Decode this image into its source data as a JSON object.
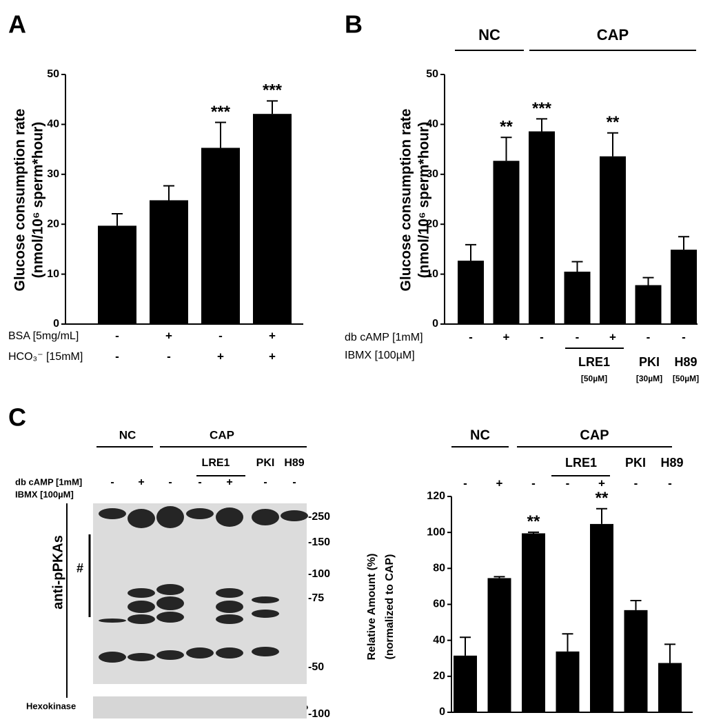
{
  "panel_labels": [
    "A",
    "B",
    "C"
  ],
  "chart_data": [
    {
      "type": "bar",
      "ylabel": [
        "Glucose consumption rate",
        "(nmol/10⁶ sperm*hour)"
      ],
      "values": [
        19.7,
        24.8,
        35.3,
        42.1
      ],
      "errors": [
        2.4,
        2.9,
        5.1,
        2.6
      ],
      "significance": [
        null,
        null,
        "***",
        "***"
      ],
      "color": "#000000",
      "ylim": [
        0,
        50
      ],
      "yticks": [
        0,
        10,
        20,
        30,
        40,
        50
      ],
      "treatments": [
        {
          "label": "BSA [5mg/mL]",
          "marks": [
            "-",
            "+",
            "-",
            "+"
          ]
        },
        {
          "label": "HCO₃⁻ [15mM]",
          "marks": [
            "-",
            "-",
            "+",
            "+"
          ]
        }
      ]
    },
    {
      "type": "bar",
      "ylabel": [
        "Glucose consumption rate",
        "(nmol/10⁶ sperm*hour)"
      ],
      "values": [
        12.7,
        32.7,
        38.6,
        10.5,
        33.6,
        7.8,
        14.9
      ],
      "errors": [
        3.2,
        4.7,
        2.5,
        2.0,
        4.7,
        1.5,
        2.6
      ],
      "significance": [
        null,
        "**",
        "***",
        null,
        "**",
        null,
        null
      ],
      "color": "#000000",
      "ylim": [
        0,
        50
      ],
      "yticks": [
        0,
        10,
        20,
        30,
        40,
        50
      ],
      "groups": [
        {
          "label": "NC"
        },
        {
          "label": "CAP"
        }
      ],
      "treatments": [
        {
          "label": "db cAMP [1mM]",
          "marks": [
            "-",
            "+",
            "-",
            "-",
            "+",
            "-",
            "-"
          ]
        },
        {
          "label": "IBMX [100µM]"
        }
      ],
      "inhibitors": [
        {
          "name": "LRE1",
          "dose": "[50µM]"
        },
        {
          "name": "PKI",
          "dose": "[30µM]"
        },
        {
          "name": "H89",
          "dose": "[50µM]"
        }
      ]
    },
    {
      "type": "bar",
      "ylabel": [
        "Relative Amount (%)",
        "(normalized to CAP)"
      ],
      "values": [
        31.5,
        74.6,
        99.5,
        33.8,
        104.7,
        56.8,
        27.4
      ],
      "errors": [
        10.2,
        0.8,
        0.6,
        9.8,
        8.5,
        5.3,
        10.4
      ],
      "significance": [
        null,
        null,
        "**",
        null,
        "**",
        null,
        null
      ],
      "color": "#000000",
      "ylim": [
        0,
        120
      ],
      "yticks": [
        0,
        20,
        40,
        60,
        80,
        100,
        120
      ],
      "groups": [
        {
          "label": "NC"
        },
        {
          "label": "CAP"
        }
      ],
      "treatments": [
        {
          "marks": [
            "-",
            "+",
            "-",
            "-",
            "+",
            "-",
            "-"
          ]
        }
      ],
      "inhibitors": [
        {
          "name": "LRE1"
        },
        {
          "name": "PKI"
        },
        {
          "name": "H89"
        }
      ]
    }
  ],
  "blot": {
    "groups": [
      "NC",
      "CAP"
    ],
    "inhibitors": [
      "LRE1",
      "PKI",
      "H89"
    ],
    "treatments": [
      "db cAMP [1mM]",
      "IBMX [100µM]"
    ],
    "marks": [
      "-",
      "+",
      "-",
      "-",
      "+",
      "-",
      "-"
    ],
    "antibody": "anti-pPKAs",
    "band_label": "#",
    "markers": [
      "-250",
      "-150",
      "-100",
      "-75",
      "-50"
    ],
    "loading_control": "Hexokinase",
    "loading_marker": "-100"
  }
}
